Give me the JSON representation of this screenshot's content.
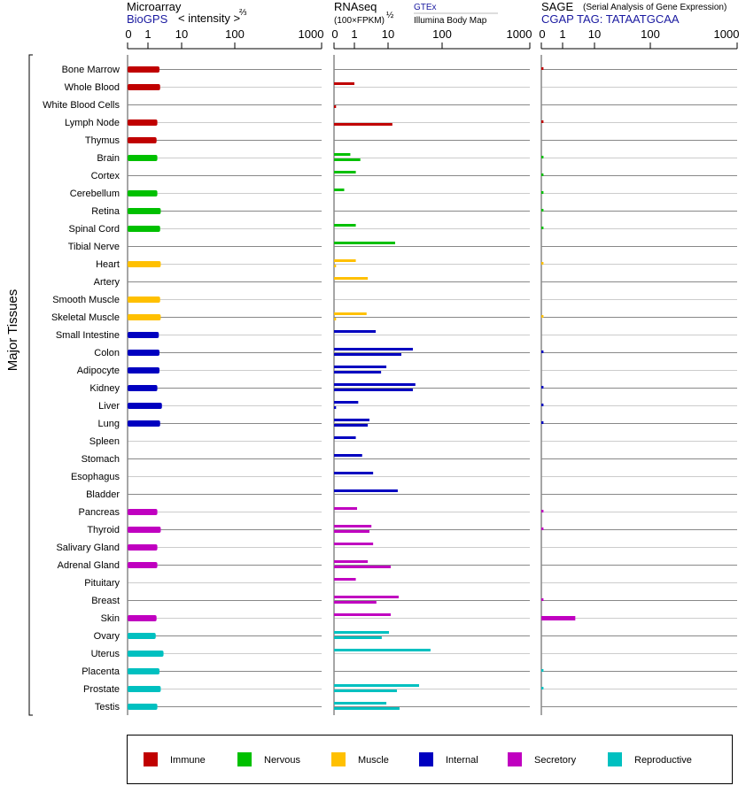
{
  "chart_data": {
    "type": "bar",
    "orientation": "horizontal",
    "y_axis_label": "Major Tissues",
    "panels": [
      {
        "key": "microarray",
        "title": "Microarray",
        "source": "BioGPS",
        "unit_label": "< intensity >",
        "unit_exp": "⅔",
        "ticks": [
          "0",
          "1",
          "10",
          "100",
          "1000"
        ]
      },
      {
        "key": "rnaseq",
        "title": "RNAseq",
        "unit_label": "(100×FPKM)",
        "unit_exp": "½",
        "sources": [
          "GTEx",
          "Illumina Body Map"
        ],
        "ticks": [
          "0",
          "1",
          "10",
          "100",
          "1000"
        ]
      },
      {
        "key": "sage",
        "title": "SAGE",
        "subtitle": "(Serial Analysis of Gene Expression)",
        "source": "CGAP TAG: TATAATGCAA",
        "ticks": [
          "0",
          "1",
          "10",
          "100",
          "1000"
        ]
      }
    ],
    "xlim": [
      0,
      1000
    ],
    "groups": [
      {
        "name": "Immune",
        "color": "#c00000"
      },
      {
        "name": "Nervous",
        "color": "#00c000"
      },
      {
        "name": "Muscle",
        "color": "#ffc000"
      },
      {
        "name": "Internal",
        "color": "#0000c0"
      },
      {
        "name": "Secretory",
        "color": "#c000c0"
      },
      {
        "name": "Reproductive",
        "color": "#00c0c0"
      }
    ],
    "legend_position": "bottom",
    "tissues": [
      {
        "name": "Bone Marrow",
        "group": 0,
        "microarray": 2.2,
        "gtex": null,
        "illumina": null,
        "sage": 0.1
      },
      {
        "name": "Whole Blood",
        "group": 0,
        "microarray": 2.3,
        "gtex": 1.0,
        "illumina": null,
        "sage": null
      },
      {
        "name": "White Blood Cells",
        "group": 0,
        "microarray": null,
        "gtex": null,
        "illumina": 0.1,
        "sage": null
      },
      {
        "name": "Lymph Node",
        "group": 0,
        "microarray": 1.9,
        "gtex": null,
        "illumina": 12,
        "sage": 0.1
      },
      {
        "name": "Thymus",
        "group": 0,
        "microarray": 1.8,
        "gtex": null,
        "illumina": null,
        "sage": null
      },
      {
        "name": "Brain",
        "group": 1,
        "microarray": 1.9,
        "gtex": 0.8,
        "illumina": 1.5,
        "sage": 0.1
      },
      {
        "name": "Cortex",
        "group": 1,
        "microarray": null,
        "gtex": 1.1,
        "illumina": null,
        "sage": 0.1
      },
      {
        "name": "Cerebellum",
        "group": 1,
        "microarray": 1.9,
        "gtex": 0.5,
        "illumina": null,
        "sage": 0.1
      },
      {
        "name": "Retina",
        "group": 1,
        "microarray": 2.4,
        "gtex": null,
        "illumina": null,
        "sage": 0.1
      },
      {
        "name": "Spinal Cord",
        "group": 1,
        "microarray": 2.3,
        "gtex": 1.1,
        "illumina": null,
        "sage": 0.1
      },
      {
        "name": "Tibial Nerve",
        "group": 1,
        "microarray": null,
        "gtex": 13.5,
        "illumina": null,
        "sage": null
      },
      {
        "name": "Heart",
        "group": 2,
        "microarray": 2.4,
        "gtex": 1.1,
        "illumina": 0.1,
        "sage": 0.1
      },
      {
        "name": "Artery",
        "group": 2,
        "microarray": null,
        "gtex": 2.5,
        "illumina": null,
        "sage": null
      },
      {
        "name": "Smooth Muscle",
        "group": 2,
        "microarray": 2.3,
        "gtex": null,
        "illumina": null,
        "sage": null
      },
      {
        "name": "Skeletal Muscle",
        "group": 2,
        "microarray": 2.4,
        "gtex": 2.3,
        "illumina": 0.1,
        "sage": 0.1
      },
      {
        "name": "Small Intestine",
        "group": 3,
        "microarray": 2.1,
        "gtex": 4.3,
        "illumina": null,
        "sage": null
      },
      {
        "name": "Colon",
        "group": 3,
        "microarray": 2.2,
        "gtex": 28.8,
        "illumina": 17.6,
        "sage": 0.1
      },
      {
        "name": "Adipocyte",
        "group": 3,
        "microarray": 2.2,
        "gtex": 8.9,
        "illumina": 6.2,
        "sage": null
      },
      {
        "name": "Kidney",
        "group": 3,
        "microarray": 1.9,
        "gtex": 32,
        "illumina": 28.8,
        "sage": 0.1
      },
      {
        "name": "Liver",
        "group": 3,
        "microarray": 2.6,
        "gtex": 1.3,
        "illumina": 0.1,
        "sage": 0.1
      },
      {
        "name": "Lung",
        "group": 3,
        "microarray": 2.3,
        "gtex": 2.8,
        "illumina": 2.5,
        "sage": 0.1
      },
      {
        "name": "Spleen",
        "group": 3,
        "microarray": null,
        "gtex": 1.1,
        "illumina": null,
        "sage": null
      },
      {
        "name": "Stomach",
        "group": 3,
        "microarray": null,
        "gtex": 1.7,
        "illumina": null,
        "sage": null
      },
      {
        "name": "Esophagus",
        "group": 3,
        "microarray": null,
        "gtex": 3.6,
        "illumina": null,
        "sage": null
      },
      {
        "name": "Bladder",
        "group": 3,
        "microarray": null,
        "gtex": 15.1,
        "illumina": null,
        "sage": null
      },
      {
        "name": "Pancreas",
        "group": 4,
        "microarray": 1.9,
        "gtex": 1.2,
        "illumina": null,
        "sage": 0.1
      },
      {
        "name": "Thyroid",
        "group": 4,
        "microarray": 2.4,
        "gtex": 3.2,
        "illumina": 2.8,
        "sage": 0.1
      },
      {
        "name": "Salivary Gland",
        "group": 4,
        "microarray": 1.9,
        "gtex": 3.6,
        "illumina": null,
        "sage": null
      },
      {
        "name": "Adrenal Gland",
        "group": 4,
        "microarray": 1.9,
        "gtex": 2.5,
        "illumina": 11.2,
        "sage": null
      },
      {
        "name": "Pituitary",
        "group": 4,
        "microarray": null,
        "gtex": 1.1,
        "illumina": null,
        "sage": null
      },
      {
        "name": "Breast",
        "group": 4,
        "microarray": null,
        "gtex": 15.7,
        "illumina": 4.5,
        "sage": 0.1
      },
      {
        "name": "Skin",
        "group": 4,
        "microarray": 1.8,
        "gtex": 11.2,
        "illumina": null,
        "sage": 2.5
      },
      {
        "name": "Ovary",
        "group": 5,
        "microarray": 1.7,
        "gtex": 10.4,
        "illumina": 6.5,
        "sage": null
      },
      {
        "name": "Uterus",
        "group": 5,
        "microarray": 2.9,
        "gtex": 61,
        "illumina": null,
        "sage": null
      },
      {
        "name": "Placenta",
        "group": 5,
        "microarray": 2.2,
        "gtex": null,
        "illumina": null,
        "sage": 0.1
      },
      {
        "name": "Prostate",
        "group": 5,
        "microarray": 2.4,
        "gtex": 37.5,
        "illumina": 14.6,
        "sage": 0.1
      },
      {
        "name": "Testis",
        "group": 5,
        "microarray": 1.9,
        "gtex": 8.9,
        "illumina": 16.3,
        "sage": null
      }
    ]
  }
}
